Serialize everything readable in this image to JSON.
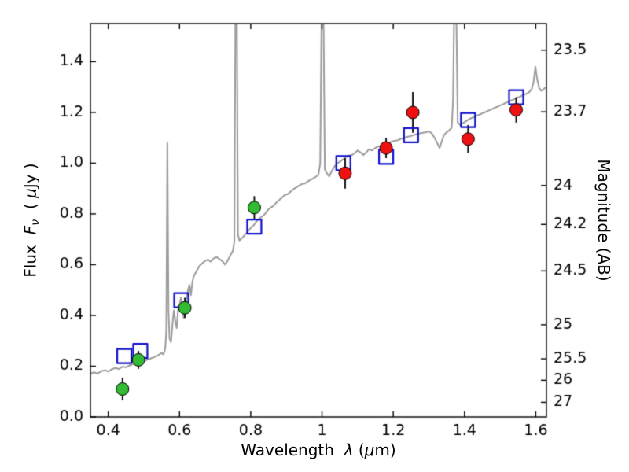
{
  "figure": {
    "background": "#ffffff",
    "frame_color": "#000000",
    "tick_color": "#000000",
    "spectrum_color": "#9b9b9b",
    "green_marker_color": "#33bb33",
    "red_marker_color": "#ee1111",
    "blue_square_color": "#1111cc",
    "errorbar_color": "#000000"
  },
  "labels": {
    "xlabel": {
      "t1": "Wavelength  ",
      "t2": "λ",
      "t3": " (",
      "t4": "μ",
      "t5": "m)"
    },
    "ylabel_left": {
      "t1": "Flux  ",
      "t2": "F",
      "t3": "ν",
      "t4": "  ( ",
      "t5": "μ",
      "t6": "Jy )"
    },
    "ylabel_right": "Magnitude (AB)"
  },
  "chart_data": {
    "type": "line",
    "title": "",
    "xlabel": "Wavelength λ (μm)",
    "ylabel_left": "Flux Fν ( μJy )",
    "ylabel_right": "Magnitude (AB)",
    "xlim": [
      0.35,
      1.63
    ],
    "ylim": [
      0.0,
      1.55
    ],
    "grid": false,
    "legend": false,
    "x_axis": {
      "values": [
        0.4,
        0.6,
        0.8,
        1.0,
        1.2,
        1.4,
        1.6
      ],
      "labels": [
        "0.4",
        "0.6",
        "0.8",
        "1",
        "1.2",
        "1.4",
        "1.6"
      ]
    },
    "y_axis_left": {
      "values": [
        0.0,
        0.2,
        0.4,
        0.6,
        0.8,
        1.0,
        1.2,
        1.4
      ],
      "labels": [
        "0.0",
        "0.2",
        "0.4",
        "0.6",
        "0.8",
        "1.0",
        "1.2",
        "1.4"
      ]
    },
    "y_axis_right": {
      "zeropoint_ab": 23.9,
      "values": [
        23.5,
        23.7,
        24.0,
        24.2,
        24.5,
        25.0,
        25.5,
        26.0,
        27.0
      ],
      "labels": [
        "23.5",
        "23.7",
        "24",
        "24.2",
        "24.5",
        "25",
        "25.5",
        "26",
        "27"
      ]
    },
    "series": [
      {
        "name": "model-spectrum",
        "type": "line",
        "color": "#9b9b9b",
        "linewidth": 2,
        "points": [
          [
            0.35,
            0.17
          ],
          [
            0.36,
            0.176
          ],
          [
            0.37,
            0.171
          ],
          [
            0.38,
            0.18
          ],
          [
            0.39,
            0.184
          ],
          [
            0.4,
            0.179
          ],
          [
            0.41,
            0.188
          ],
          [
            0.42,
            0.193
          ],
          [
            0.43,
            0.189
          ],
          [
            0.44,
            0.198
          ],
          [
            0.45,
            0.196
          ],
          [
            0.46,
            0.203
          ],
          [
            0.47,
            0.208
          ],
          [
            0.48,
            0.213
          ],
          [
            0.49,
            0.21
          ],
          [
            0.5,
            0.22
          ],
          [
            0.51,
            0.226
          ],
          [
            0.52,
            0.231
          ],
          [
            0.53,
            0.236
          ],
          [
            0.54,
            0.243
          ],
          [
            0.55,
            0.252
          ],
          [
            0.555,
            0.247
          ],
          [
            0.56,
            0.27
          ],
          [
            0.563,
            0.34
          ],
          [
            0.566,
            1.08
          ],
          [
            0.569,
            0.42
          ],
          [
            0.572,
            0.31
          ],
          [
            0.576,
            0.295
          ],
          [
            0.58,
            0.36
          ],
          [
            0.584,
            0.42
          ],
          [
            0.588,
            0.38
          ],
          [
            0.592,
            0.35
          ],
          [
            0.596,
            0.42
          ],
          [
            0.6,
            0.44
          ],
          [
            0.604,
            0.47
          ],
          [
            0.608,
            0.43
          ],
          [
            0.612,
            0.39
          ],
          [
            0.616,
            0.44
          ],
          [
            0.62,
            0.47
          ],
          [
            0.624,
            0.5
          ],
          [
            0.628,
            0.52
          ],
          [
            0.632,
            0.48
          ],
          [
            0.636,
            0.53
          ],
          [
            0.64,
            0.555
          ],
          [
            0.648,
            0.575
          ],
          [
            0.656,
            0.595
          ],
          [
            0.664,
            0.605
          ],
          [
            0.672,
            0.615
          ],
          [
            0.68,
            0.62
          ],
          [
            0.688,
            0.612
          ],
          [
            0.696,
            0.625
          ],
          [
            0.704,
            0.63
          ],
          [
            0.712,
            0.622
          ],
          [
            0.72,
            0.615
          ],
          [
            0.728,
            0.6
          ],
          [
            0.736,
            0.618
          ],
          [
            0.744,
            0.64
          ],
          [
            0.75,
            0.655
          ],
          [
            0.754,
            0.69
          ],
          [
            0.757,
            1.6
          ],
          [
            0.761,
            1.6
          ],
          [
            0.764,
            0.72
          ],
          [
            0.768,
            0.695
          ],
          [
            0.776,
            0.705
          ],
          [
            0.784,
            0.718
          ],
          [
            0.792,
            0.73
          ],
          [
            0.8,
            0.745
          ],
          [
            0.808,
            0.755
          ],
          [
            0.816,
            0.77
          ],
          [
            0.824,
            0.782
          ],
          [
            0.832,
            0.79
          ],
          [
            0.84,
            0.8
          ],
          [
            0.848,
            0.815
          ],
          [
            0.856,
            0.825
          ],
          [
            0.864,
            0.832
          ],
          [
            0.872,
            0.845
          ],
          [
            0.88,
            0.855
          ],
          [
            0.888,
            0.865
          ],
          [
            0.896,
            0.875
          ],
          [
            0.904,
            0.878
          ],
          [
            0.912,
            0.888
          ],
          [
            0.92,
            0.898
          ],
          [
            0.928,
            0.905
          ],
          [
            0.936,
            0.912
          ],
          [
            0.944,
            0.918
          ],
          [
            0.952,
            0.92
          ],
          [
            0.96,
            0.928
          ],
          [
            0.968,
            0.935
          ],
          [
            0.976,
            0.94
          ],
          [
            0.984,
            0.948
          ],
          [
            0.99,
            0.955
          ],
          [
            0.995,
            1.0
          ],
          [
            0.999,
            1.6
          ],
          [
            1.004,
            1.6
          ],
          [
            1.008,
            0.975
          ],
          [
            1.014,
            0.96
          ],
          [
            1.02,
            0.948
          ],
          [
            1.028,
            0.97
          ],
          [
            1.036,
            0.988
          ],
          [
            1.044,
            1.0
          ],
          [
            1.052,
            1.008
          ],
          [
            1.06,
            1.016
          ],
          [
            1.068,
            1.025
          ],
          [
            1.076,
            1.03
          ],
          [
            1.084,
            1.032
          ],
          [
            1.092,
            1.04
          ],
          [
            1.1,
            1.05
          ],
          [
            1.108,
            1.042
          ],
          [
            1.116,
            1.032
          ],
          [
            1.124,
            1.042
          ],
          [
            1.132,
            1.055
          ],
          [
            1.14,
            1.05
          ],
          [
            1.148,
            1.058
          ],
          [
            1.156,
            1.065
          ],
          [
            1.164,
            1.068
          ],
          [
            1.172,
            1.072
          ],
          [
            1.18,
            1.078
          ],
          [
            1.188,
            1.08
          ],
          [
            1.196,
            1.085
          ],
          [
            1.204,
            1.088
          ],
          [
            1.212,
            1.09
          ],
          [
            1.22,
            1.095
          ],
          [
            1.228,
            1.098
          ],
          [
            1.236,
            1.102
          ],
          [
            1.244,
            1.105
          ],
          [
            1.252,
            1.108
          ],
          [
            1.26,
            1.112
          ],
          [
            1.268,
            1.115
          ],
          [
            1.276,
            1.118
          ],
          [
            1.284,
            1.12
          ],
          [
            1.292,
            1.122
          ],
          [
            1.3,
            1.125
          ],
          [
            1.308,
            1.118
          ],
          [
            1.316,
            1.1
          ],
          [
            1.324,
            1.078
          ],
          [
            1.33,
            1.06
          ],
          [
            1.336,
            1.085
          ],
          [
            1.342,
            1.11
          ],
          [
            1.35,
            1.122
          ],
          [
            1.358,
            1.13
          ],
          [
            1.364,
            1.14
          ],
          [
            1.368,
            1.25
          ],
          [
            1.371,
            1.6
          ],
          [
            1.377,
            1.6
          ],
          [
            1.381,
            1.16
          ],
          [
            1.388,
            1.15
          ],
          [
            1.396,
            1.158
          ],
          [
            1.404,
            1.165
          ],
          [
            1.412,
            1.172
          ],
          [
            1.42,
            1.178
          ],
          [
            1.428,
            1.182
          ],
          [
            1.436,
            1.188
          ],
          [
            1.444,
            1.192
          ],
          [
            1.452,
            1.198
          ],
          [
            1.46,
            1.202
          ],
          [
            1.468,
            1.208
          ],
          [
            1.476,
            1.212
          ],
          [
            1.484,
            1.218
          ],
          [
            1.492,
            1.222
          ],
          [
            1.5,
            1.228
          ],
          [
            1.508,
            1.232
          ],
          [
            1.516,
            1.238
          ],
          [
            1.524,
            1.242
          ],
          [
            1.532,
            1.248
          ],
          [
            1.54,
            1.252
          ],
          [
            1.548,
            1.258
          ],
          [
            1.556,
            1.262
          ],
          [
            1.564,
            1.268
          ],
          [
            1.572,
            1.272
          ],
          [
            1.58,
            1.278
          ],
          [
            1.588,
            1.29
          ],
          [
            1.594,
            1.32
          ],
          [
            1.599,
            1.38
          ],
          [
            1.604,
            1.33
          ],
          [
            1.61,
            1.295
          ],
          [
            1.616,
            1.285
          ],
          [
            1.622,
            1.292
          ],
          [
            1.63,
            1.3
          ]
        ]
      },
      {
        "name": "model-photometry",
        "type": "scatter",
        "marker": "open-square",
        "color": "#1111cc",
        "points": [
          [
            0.445,
            0.24
          ],
          [
            0.49,
            0.26
          ],
          [
            0.605,
            0.46
          ],
          [
            0.81,
            0.75
          ],
          [
            1.06,
            1.0
          ],
          [
            1.18,
            1.025
          ],
          [
            1.25,
            1.11
          ],
          [
            1.41,
            1.17
          ],
          [
            1.545,
            1.26
          ]
        ]
      },
      {
        "name": "observed-photometry-green",
        "type": "scatter",
        "marker": "circle",
        "color": "#33bb33",
        "error_color": "#000000",
        "points": [
          [
            0.44,
            0.11,
            0.045
          ],
          [
            0.485,
            0.225,
            0.035
          ],
          [
            0.615,
            0.43,
            0.04
          ],
          [
            0.81,
            0.825,
            0.045
          ]
        ]
      },
      {
        "name": "observed-photometry-red",
        "type": "scatter",
        "marker": "circle",
        "color": "#ee1111",
        "error_color": "#000000",
        "points": [
          [
            1.065,
            0.96,
            0.06
          ],
          [
            1.18,
            1.06,
            0.04
          ],
          [
            1.255,
            1.2,
            0.08
          ],
          [
            1.41,
            1.095,
            0.055
          ],
          [
            1.545,
            1.21,
            0.05
          ]
        ]
      }
    ]
  }
}
